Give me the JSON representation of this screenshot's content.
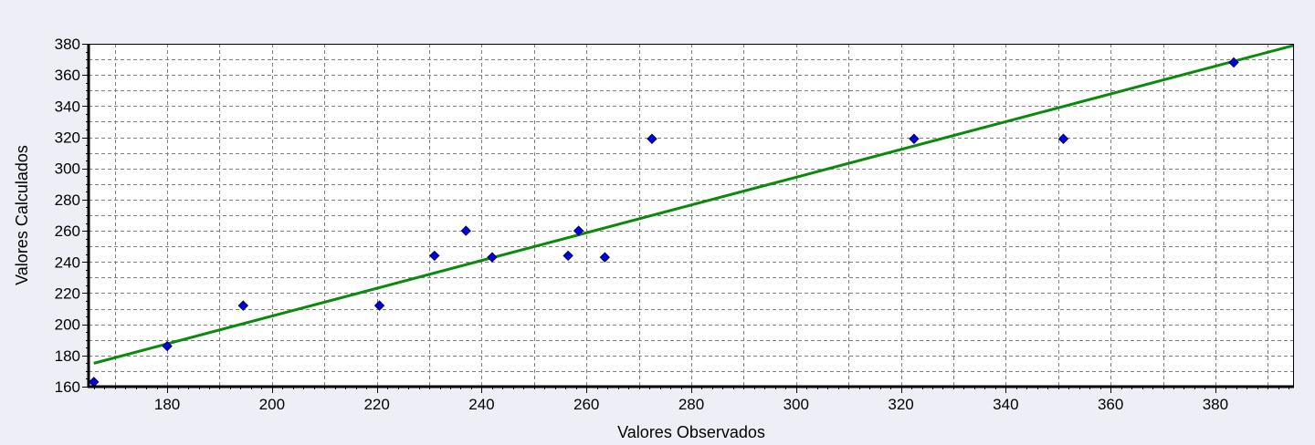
{
  "chart_data": {
    "type": "scatter",
    "xlabel": "Valores Observados",
    "ylabel": "Valores Calculados",
    "xlim": [
      165,
      395
    ],
    "ylim": [
      160,
      380
    ],
    "x_ticks": [
      180,
      200,
      220,
      240,
      260,
      280,
      300,
      320,
      340,
      360,
      380
    ],
    "y_ticks": [
      160,
      180,
      200,
      220,
      240,
      260,
      280,
      300,
      320,
      340,
      360,
      380
    ],
    "grid": true,
    "points": [
      {
        "x": 166,
        "y": 163
      },
      {
        "x": 180,
        "y": 186
      },
      {
        "x": 194.5,
        "y": 212
      },
      {
        "x": 220.5,
        "y": 212
      },
      {
        "x": 231,
        "y": 244
      },
      {
        "x": 237,
        "y": 260
      },
      {
        "x": 242,
        "y": 243
      },
      {
        "x": 256.5,
        "y": 244
      },
      {
        "x": 258.5,
        "y": 260
      },
      {
        "x": 263.5,
        "y": 243
      },
      {
        "x": 272.5,
        "y": 319
      },
      {
        "x": 322.5,
        "y": 319
      },
      {
        "x": 351,
        "y": 319
      },
      {
        "x": 383.5,
        "y": 368
      }
    ],
    "fit_line": {
      "x": [
        166,
        395
      ],
      "y": [
        175,
        379
      ]
    },
    "colors": {
      "points": "#0000e0",
      "point_outline": "#000060",
      "fit_line": "#0a8a0a",
      "grid": "#808080",
      "plot_background": "#ffffff",
      "page_background": "#eeeef6"
    }
  }
}
